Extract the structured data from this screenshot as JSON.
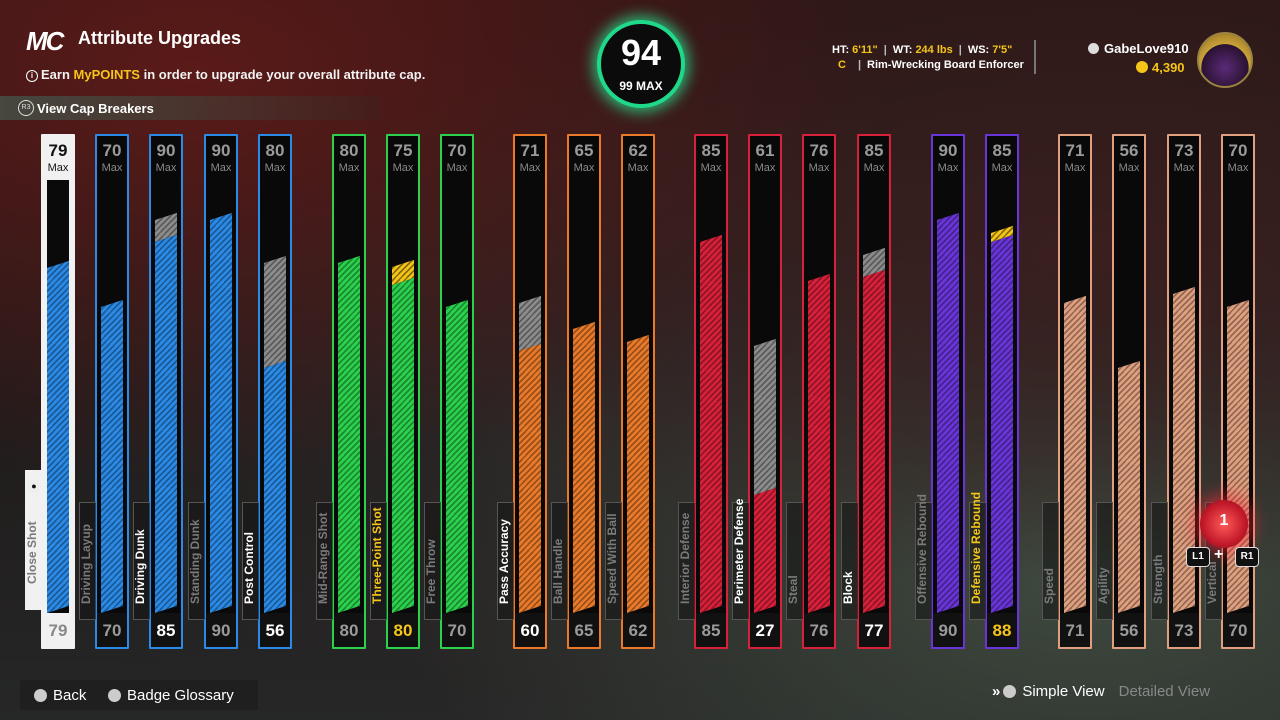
{
  "header": {
    "logo": "MC",
    "title": "Attribute Upgrades",
    "subtitle_pre": "Earn ",
    "subtitle_highlight": "MyPOINTS",
    "subtitle_post": " in order to upgrade your overall attribute cap.",
    "cap_breakers_button_icon": "R3",
    "cap_breakers_label": "View Cap Breakers"
  },
  "overall": {
    "value": "94",
    "max_label": "99 MAX"
  },
  "player": {
    "ht_label": "HT:",
    "ht": "6'11\"",
    "wt_label": "WT:",
    "wt": "244 lbs",
    "ws_label": "WS:",
    "ws": "7'5\"",
    "position": "C",
    "archetype": "Rim-Wrecking Board Enforcer",
    "username": "GabeLove910",
    "vc": "4,390"
  },
  "max_label": "Max",
  "colors": {
    "blue": "#2a8ae6",
    "green": "#2bd14d",
    "orange": "#ea7a2a",
    "red": "#d8203a",
    "purple": "#6a35d8",
    "tan": "#e0a080",
    "gold": "#f5c518",
    "gray": "#8c8c8c"
  },
  "attributes": [
    {
      "name": "Close Shot",
      "cap": "79",
      "current": "79",
      "cap_n": 79,
      "cur_n": 79,
      "pending": 0,
      "color": "blue",
      "state": "selected"
    },
    {
      "name": "Driving Layup",
      "cap": "70",
      "current": "70",
      "cap_n": 70,
      "cur_n": 70,
      "pending": 0,
      "color": "blue",
      "state": "dim"
    },
    {
      "name": "Driving Dunk",
      "cap": "90",
      "current": "85",
      "cap_n": 90,
      "cur_n": 85,
      "pending": 0,
      "color": "blue",
      "state": "on"
    },
    {
      "name": "Standing Dunk",
      "cap": "90",
      "current": "90",
      "cap_n": 90,
      "cur_n": 90,
      "pending": 0,
      "color": "blue",
      "state": "dim"
    },
    {
      "name": "Post Control",
      "cap": "80",
      "current": "56",
      "cap_n": 80,
      "cur_n": 56,
      "pending": 0,
      "color": "blue",
      "state": "on"
    },
    {
      "name": "Mid-Range Shot",
      "cap": "80",
      "current": "80",
      "cap_n": 80,
      "cur_n": 80,
      "pending": 0,
      "color": "green",
      "state": "dim"
    },
    {
      "name": "Three-Point Shot",
      "cap": "75",
      "current": "80",
      "cap_n": 75,
      "cur_n": 75,
      "pending": 5,
      "color": "green",
      "state": "gold"
    },
    {
      "name": "Free Throw",
      "cap": "70",
      "current": "70",
      "cap_n": 70,
      "cur_n": 70,
      "pending": 0,
      "color": "green",
      "state": "dim"
    },
    {
      "name": "Pass Accuracy",
      "cap": "71",
      "current": "60",
      "cap_n": 71,
      "cur_n": 60,
      "pending": 0,
      "color": "orange",
      "state": "on"
    },
    {
      "name": "Ball Handle",
      "cap": "65",
      "current": "65",
      "cap_n": 65,
      "cur_n": 65,
      "pending": 0,
      "color": "orange",
      "state": "dim"
    },
    {
      "name": "Speed With Ball",
      "cap": "62",
      "current": "62",
      "cap_n": 62,
      "cur_n": 62,
      "pending": 0,
      "color": "orange",
      "state": "dim"
    },
    {
      "name": "Interior Defense",
      "cap": "85",
      "current": "85",
      "cap_n": 85,
      "cur_n": 85,
      "pending": 0,
      "color": "red",
      "state": "dim"
    },
    {
      "name": "Perimeter Defense",
      "cap": "61",
      "current": "27",
      "cap_n": 61,
      "cur_n": 27,
      "pending": 0,
      "color": "red",
      "state": "on"
    },
    {
      "name": "Steal",
      "cap": "76",
      "current": "76",
      "cap_n": 76,
      "cur_n": 76,
      "pending": 0,
      "color": "red",
      "state": "dim"
    },
    {
      "name": "Block",
      "cap": "85",
      "current": "77",
      "cap_n": 85,
      "cur_n": 77,
      "pending": 0,
      "color": "red",
      "state": "on"
    },
    {
      "name": "Offensive Rebound",
      "cap": "90",
      "current": "90",
      "cap_n": 90,
      "cur_n": 90,
      "pending": 0,
      "color": "purple",
      "state": "dim"
    },
    {
      "name": "Defensive Rebound",
      "cap": "85",
      "current": "88",
      "cap_n": 85,
      "cur_n": 85,
      "pending": 3,
      "color": "purple",
      "state": "gold"
    },
    {
      "name": "Speed",
      "cap": "71",
      "current": "71",
      "cap_n": 71,
      "cur_n": 71,
      "pending": 0,
      "color": "tan",
      "state": "dim"
    },
    {
      "name": "Agility",
      "cap": "56",
      "current": "56",
      "cap_n": 56,
      "cur_n": 56,
      "pending": 0,
      "color": "tan",
      "state": "dim"
    },
    {
      "name": "Strength",
      "cap": "73",
      "current": "73",
      "cap_n": 73,
      "cur_n": 73,
      "pending": 0,
      "color": "tan",
      "state": "dim"
    },
    {
      "name": "Vertical",
      "cap": "70",
      "current": "70",
      "cap_n": 70,
      "cur_n": 70,
      "pending": 0,
      "color": "tan",
      "state": "dim"
    }
  ],
  "upgrade_indicator": {
    "value": "1",
    "left_button": "L1",
    "right_button": "R1",
    "plus": "+"
  },
  "footer": {
    "back_label": "Back",
    "glossary_label": "Badge Glossary",
    "chevrons": "»",
    "simple_view": "Simple View",
    "detailed_view": "Detailed View"
  }
}
